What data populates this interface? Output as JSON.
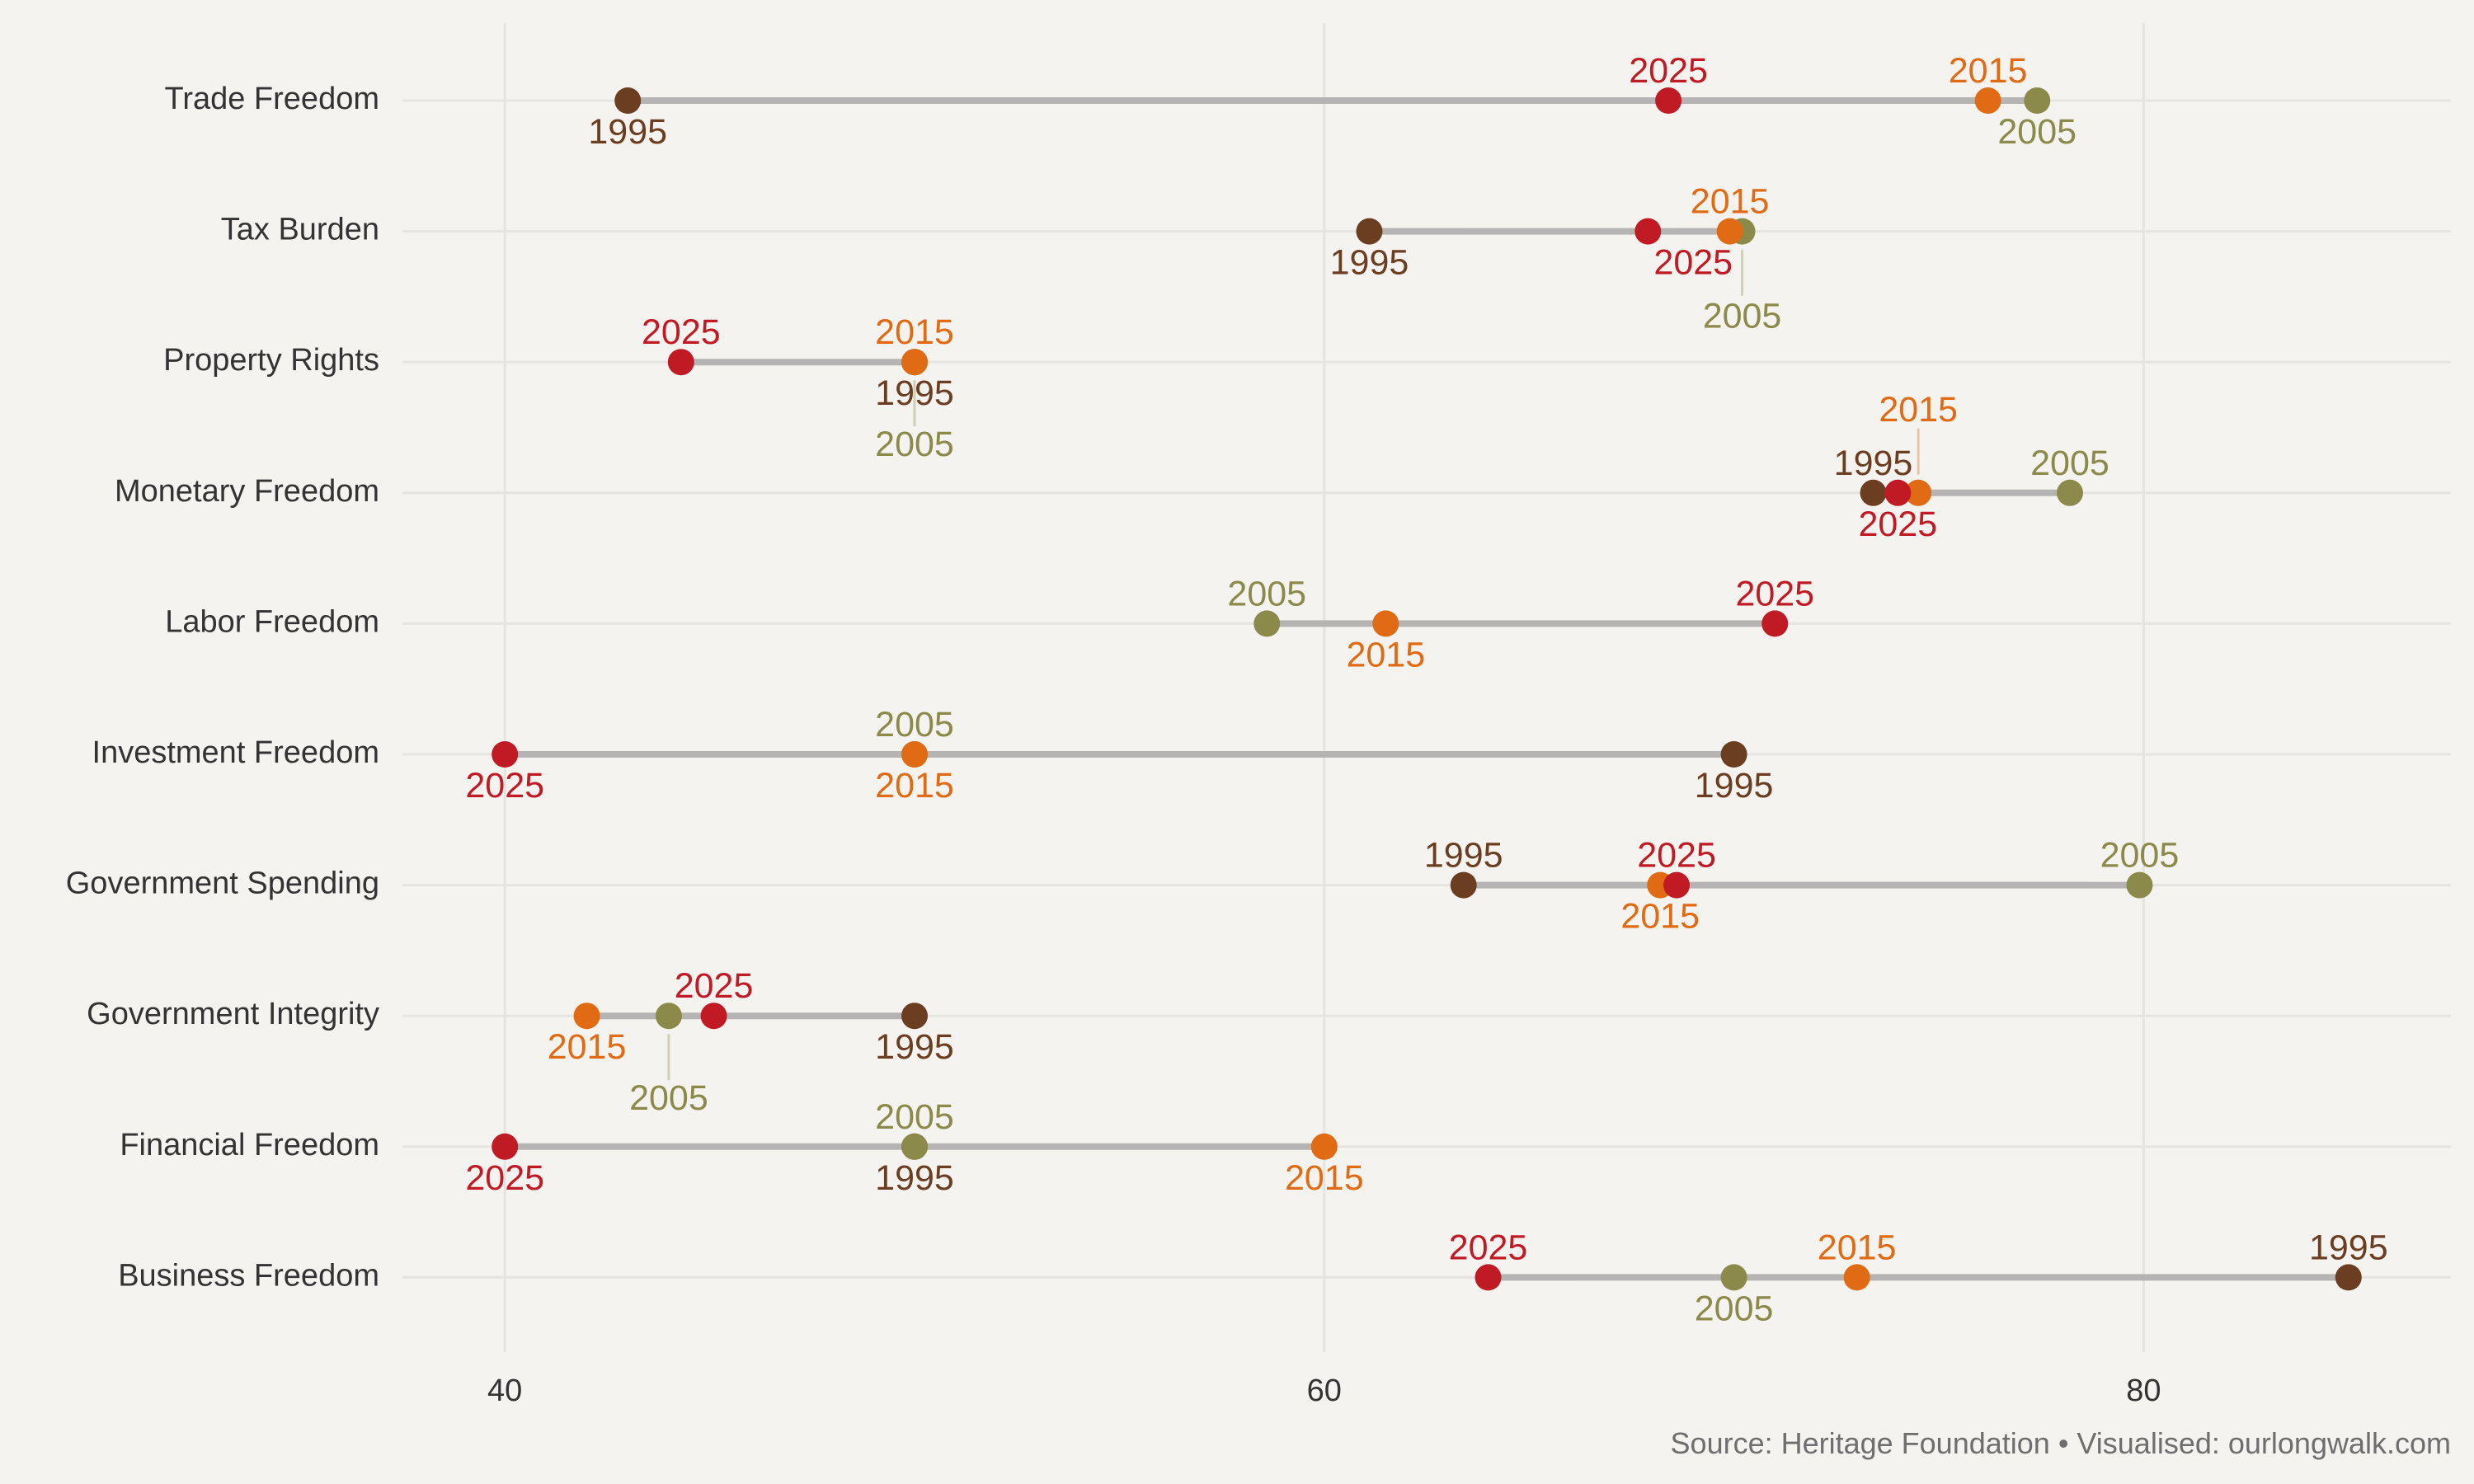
{
  "chart_data": {
    "type": "scatter",
    "subtype": "dumbbell",
    "title": "",
    "xlabel": "",
    "ylabel": "",
    "xlim": [
      37.5,
      87.5
    ],
    "xticks": [
      40,
      60,
      80
    ],
    "grid": true,
    "legend": "none",
    "categories": [
      "Trade Freedom",
      "Tax Burden",
      "Property Rights",
      "Monetary Freedom",
      "Labor Freedom",
      "Investment Freedom",
      "Government Spending",
      "Government Integrity",
      "Financial Freedom",
      "Business Freedom"
    ],
    "series": [
      {
        "name": "1995",
        "color": "#6b3d21",
        "values": [
          43,
          61.1,
          50,
          73.4,
          null,
          70,
          63.4,
          50,
          50,
          85
        ]
      },
      {
        "name": "2005",
        "color": "#8b8a4a",
        "values": [
          77.4,
          70.2,
          50,
          78.2,
          58.6,
          50,
          79.9,
          44,
          50,
          70
        ]
      },
      {
        "name": "2015",
        "color": "#e06b14",
        "values": [
          76.2,
          69.9,
          50,
          74.5,
          61.5,
          50,
          68.2,
          42,
          60,
          73
        ]
      },
      {
        "name": "2025",
        "color": "#c01b25",
        "values": [
          68.4,
          67.9,
          44.3,
          74,
          71,
          40,
          68.6,
          45.1,
          40,
          64
        ]
      }
    ]
  },
  "source_text": "Source: Heritage Foundation • Visualised: ourlongwalk.com"
}
